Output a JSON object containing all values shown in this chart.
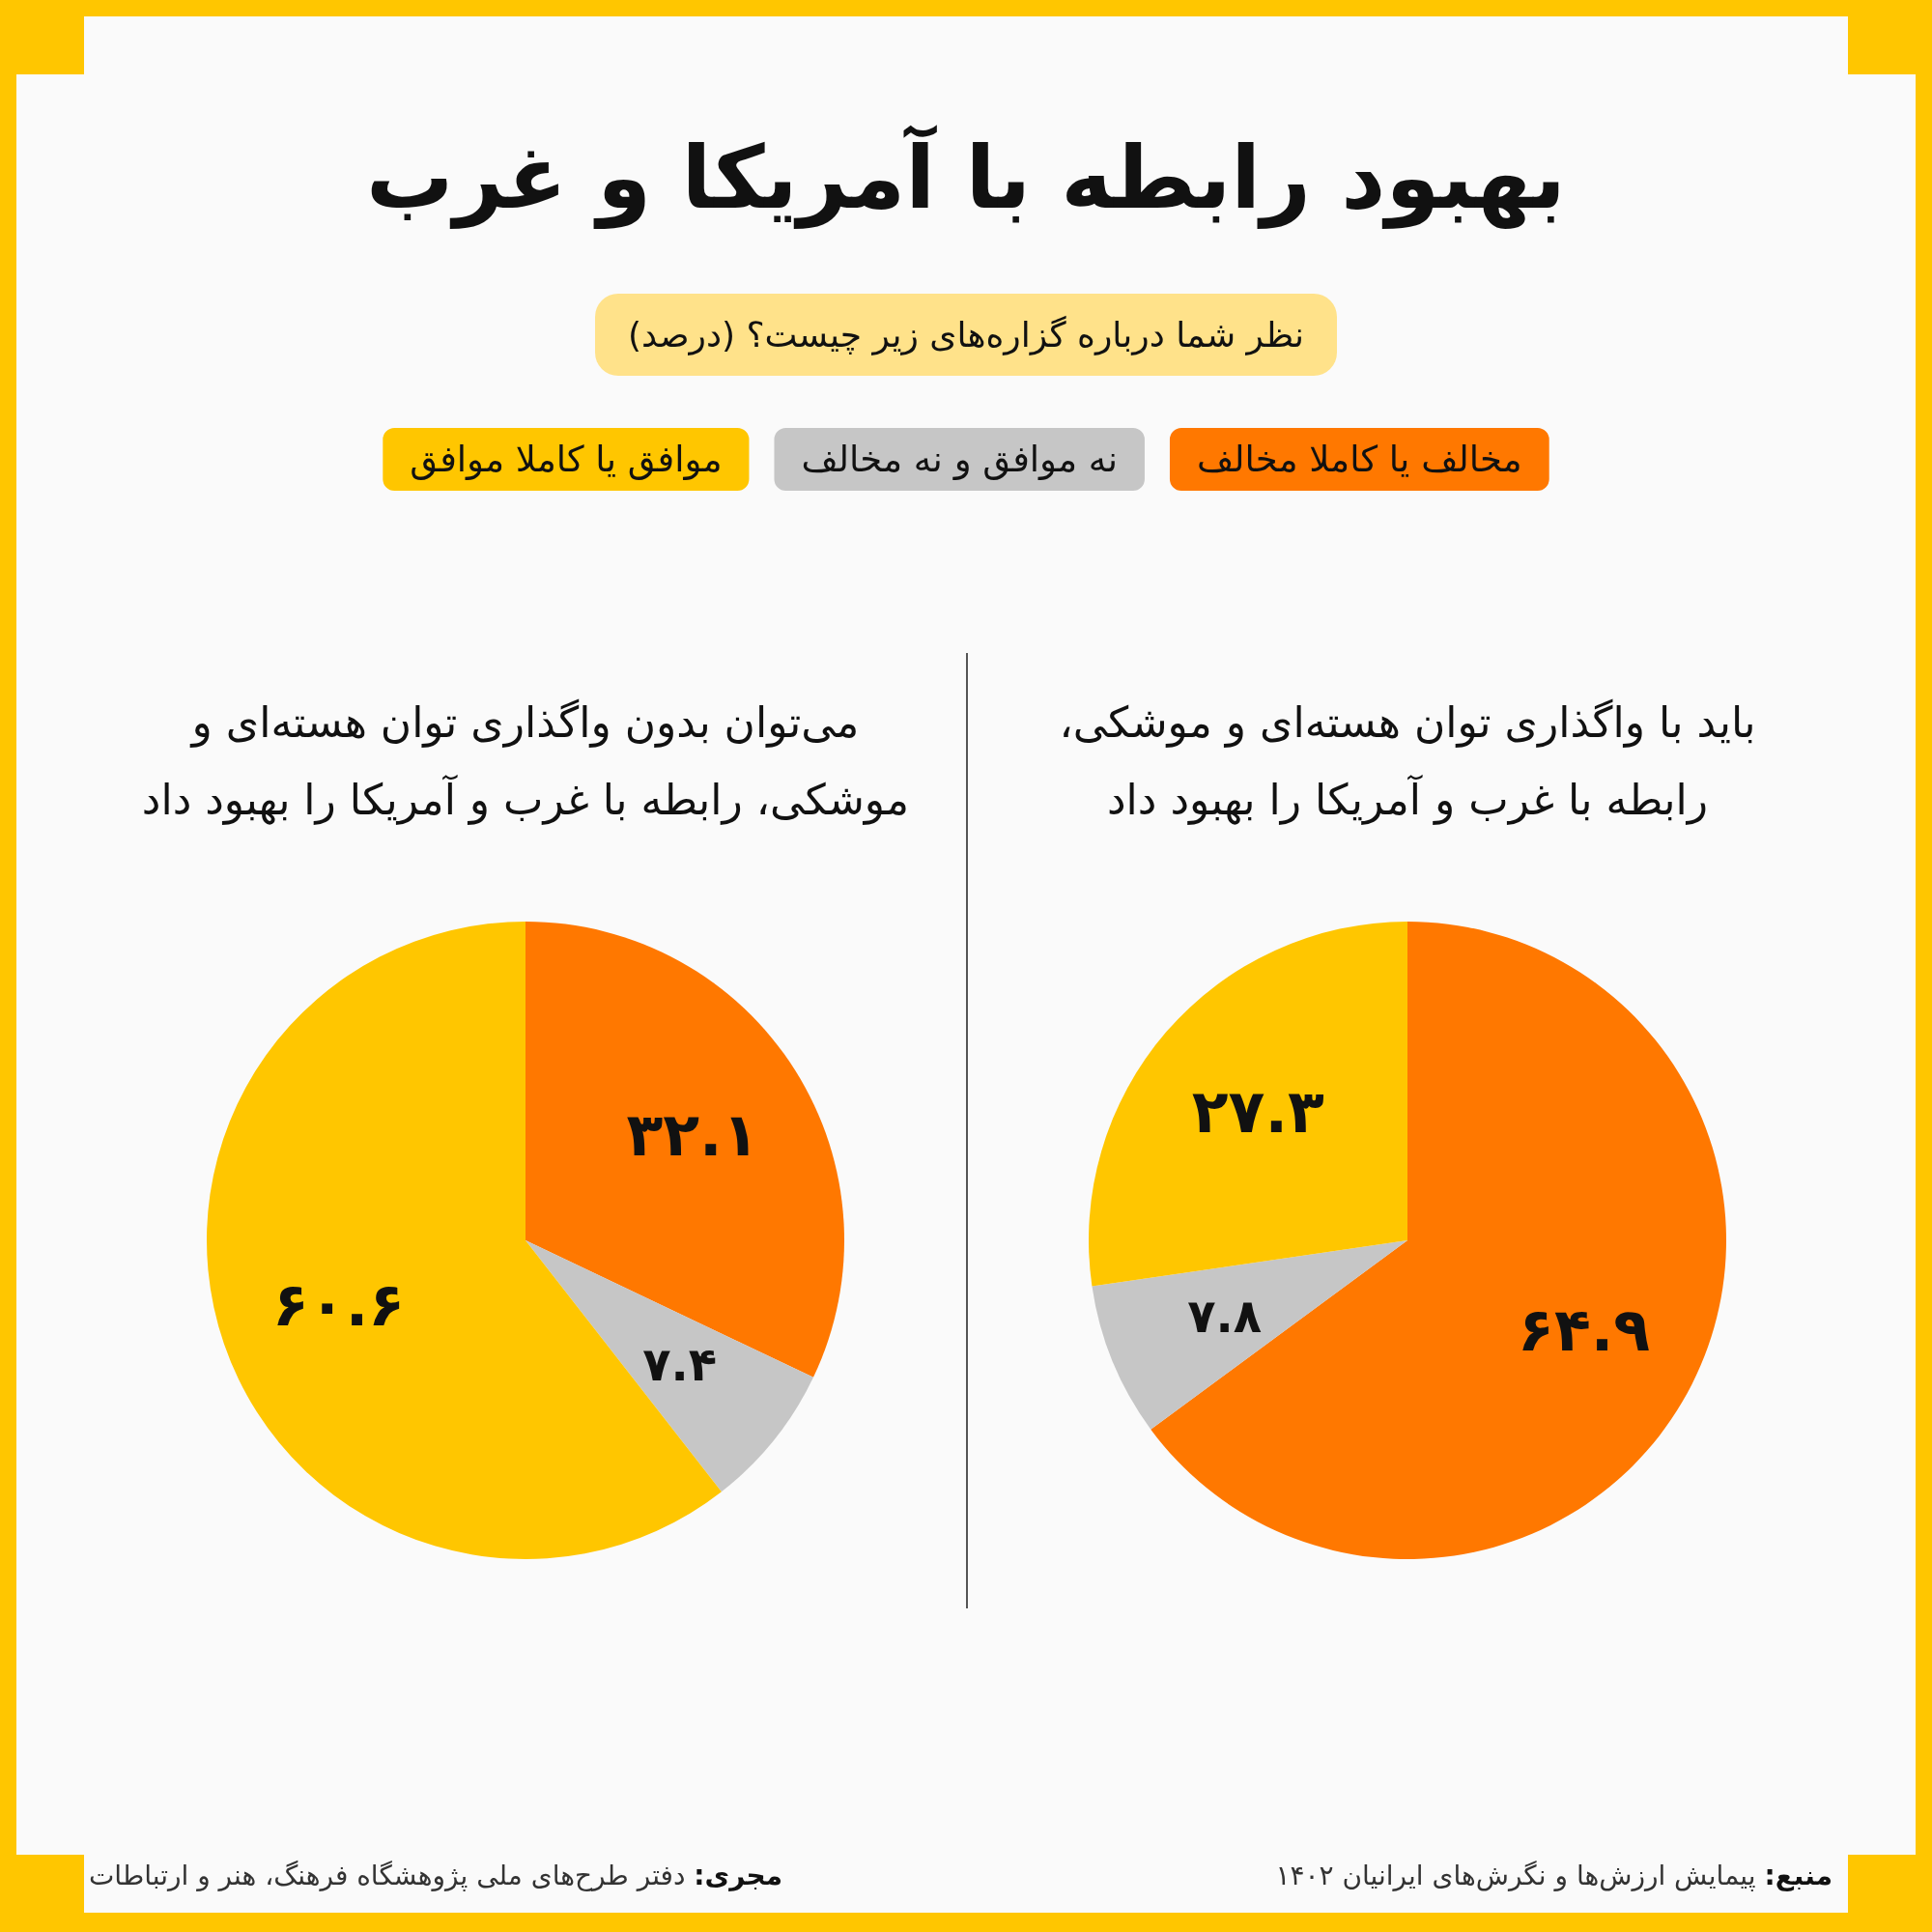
{
  "chart_data": {
    "type": "pie",
    "title": "بهبود رابطه با آمریکا و غرب",
    "subtitle": "نظر شما درباره گزاره‌های زیر چیست؟ (درصد)",
    "categories": [
      "مخالف یا کاملا مخالف",
      "نه موافق و نه مخالف",
      "موافق یا کاملا موافق"
    ],
    "colors": [
      "#ff7800",
      "#c6c6c6",
      "#ffc600"
    ],
    "legend": "top",
    "series": [
      {
        "name": "باید با واگذاری توان هسته‌ای و موشکی، رابطه با غرب و آمریکا را بهبود داد",
        "values": [
          64.9,
          7.8,
          27.3
        ],
        "value_labels": [
          "۶۴.۹",
          "۷.۸",
          "۲۷.۳"
        ]
      },
      {
        "name": "می‌توان بدون واگذاری توان هسته‌ای و موشکی، رابطه با غرب و آمریکا را بهبود داد",
        "values": [
          32.1,
          7.4,
          60.6
        ],
        "value_labels": [
          "۳۲.۱",
          "۷.۴",
          "۶۰.۶"
        ]
      }
    ],
    "annotations": [
      "منبع: پیمایش ارزش‌ها و نگرش‌های ایرانیان ۱۴۰۲",
      "مجری: دفتر طرح‌های ملی پژوهشگاه فرهنگ، هنر و ارتباطات"
    ]
  }
}
